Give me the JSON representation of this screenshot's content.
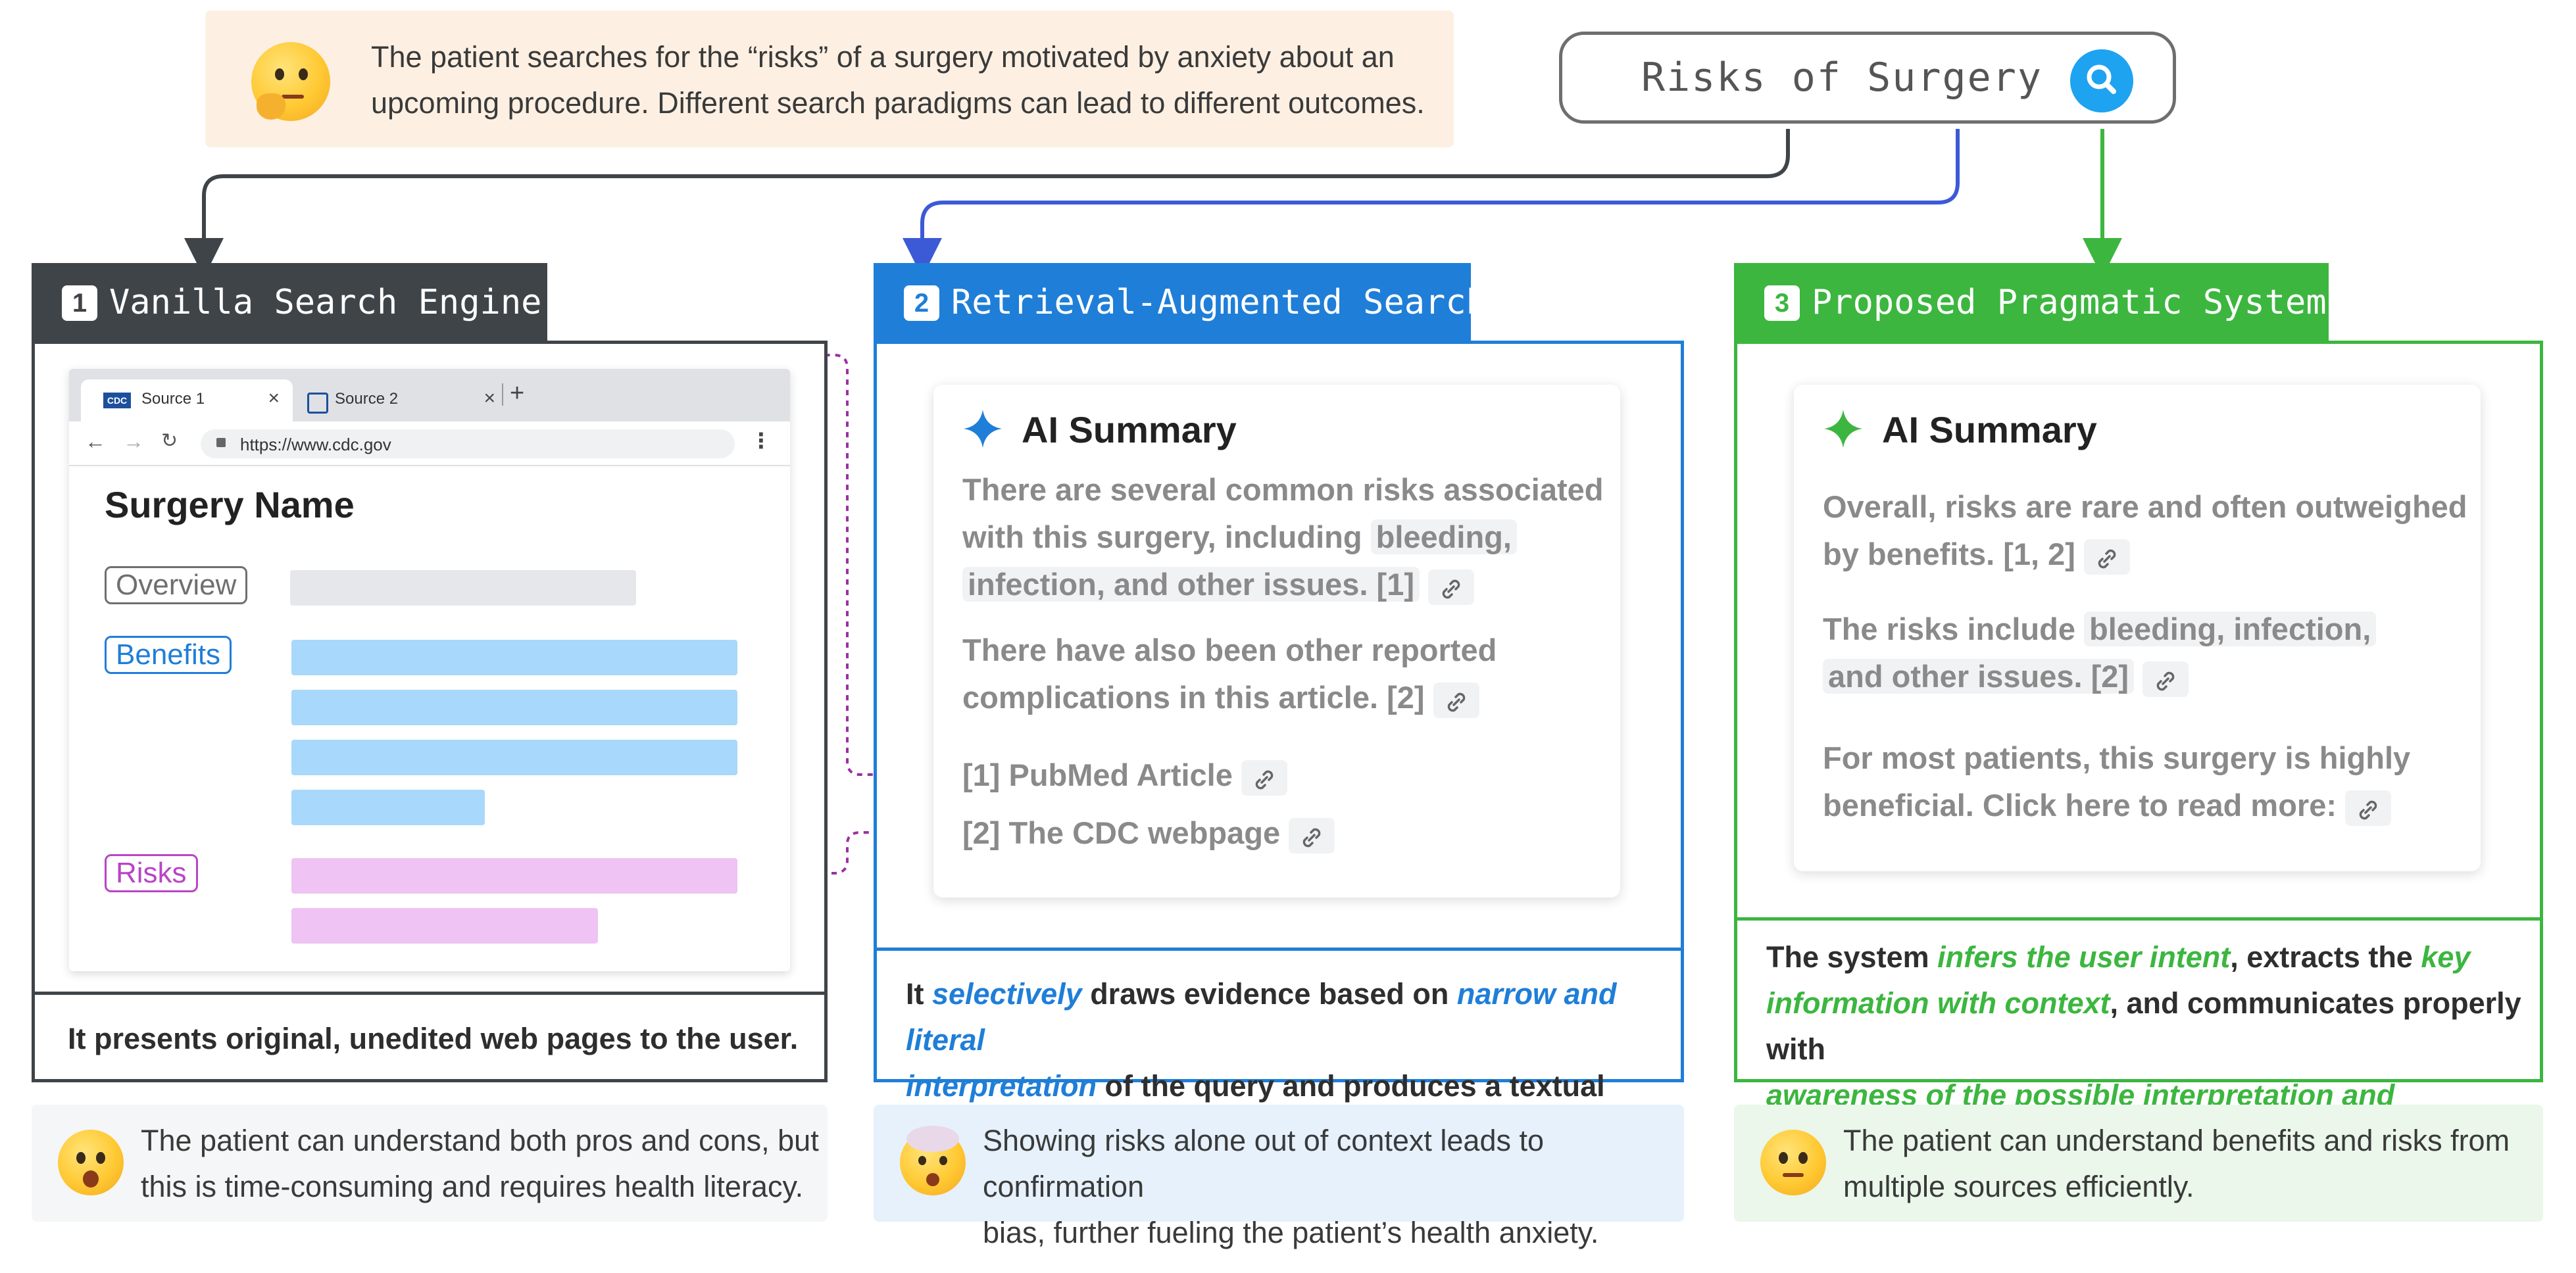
{
  "top_note": {
    "line1": "The patient searches for the “risks” of a surgery motivated by anxiety about an",
    "line2": "upcoming procedure. Different search paradigms can lead to different outcomes."
  },
  "search": {
    "query": "Risks of Surgery",
    "icon": "search-icon"
  },
  "colors": {
    "vanilla": "#3F4449",
    "rag": "#1F7ED8",
    "pragmatic": "#3CB63F",
    "benefits": "#A8D8FB",
    "risks": "#EFC3F3",
    "overview": "#E5E7EA"
  },
  "col1": {
    "num": "1",
    "title": "Vanilla Search Engine",
    "browser": {
      "tab1": "Source 1",
      "tab1_icon": "CDC",
      "tab2": "Source 2",
      "url": "https://www.cdc.gov",
      "page_title": "Surgery Name",
      "overview": "Overview",
      "benefits": "Benefits",
      "risks": "Risks"
    },
    "footer": "It presents original, unedited web pages to the user.",
    "note_line1": "The patient can understand both pros and cons, but",
    "note_line2": "this is time-consuming and requires health literacy."
  },
  "col2": {
    "num": "2",
    "title": "Retrieval-Augmented Search",
    "card_title": "AI Summary",
    "p1_l1": "There are several common risks associated",
    "p1_l2a": "with this surgery, including",
    "p1_l2b": "bleeding,",
    "p1_l3": "infection, and other issues. [1]",
    "p2_l1": "There have also been other reported",
    "p2_l2": "complications in this article. [2]",
    "ref1": "[1] PubMed Article",
    "ref2": "[2] The CDC webpage",
    "footer_a": "It ",
    "footer_b": "selectively",
    "footer_c": " draws evidence based on ",
    "footer_d": "narrow and literal",
    "footer_e": "interpretation",
    "footer_f": " of the query and produces a textual answer.",
    "note_line1": "Showing risks alone out of context leads to confirmation",
    "note_line2": "bias, further fueling the patient’s health anxiety."
  },
  "col3": {
    "num": "3",
    "title": "Proposed Pragmatic System",
    "card_title": "AI Summary",
    "p1_l1": "Overall, risks are rare and often outweighed",
    "p1_l2": "by benefits. [1, 2]",
    "p2_l1a": "The risks include",
    "p2_l1b": "bleeding, infection,",
    "p2_l2": "and other issues. [2]",
    "p3_l1": "For most patients, this surgery is highly",
    "p3_l2": "beneficial. Click here to read more:",
    "footer_a": "The system ",
    "footer_b": "infers the user intent",
    "footer_c": ", extracts the ",
    "footer_d": "key",
    "footer_e": "information with context",
    "footer_f": ", and communicates properly with",
    "footer_g": "awareness of the possible interpretation and consequences",
    "footer_h": ".",
    "note_line1": "The patient can understand benefits and risks from",
    "note_line2": "multiple sources efficiently."
  }
}
